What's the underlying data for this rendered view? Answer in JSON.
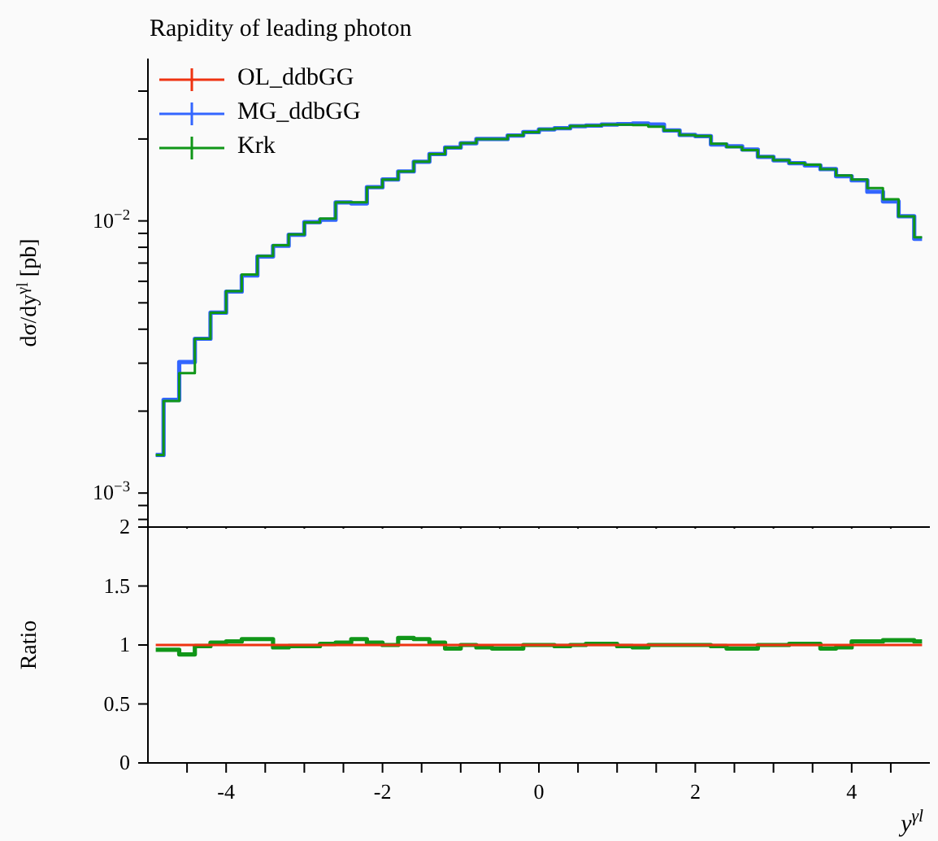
{
  "chart_data": [
    {
      "type": "step",
      "title": "Rapidity of leading photon",
      "ylabel": "dσ/dy$^{γl}$ [pb]",
      "log": "y",
      "legend": "top left",
      "tick_labels": "y",
      "x": [
        -4.9,
        -4.7,
        -4.5,
        -4.3,
        -4.1,
        -3.9,
        -3.7,
        -3.5,
        -3.3,
        -3.1,
        -2.9,
        -2.7,
        -2.5,
        -2.3,
        -2.1,
        -1.9,
        -1.7,
        -1.5,
        -1.3,
        -1.1,
        -0.9,
        -0.7,
        -0.5,
        -0.3,
        -0.1,
        0.1,
        0.3,
        0.5,
        0.7,
        0.9,
        1.1,
        1.3,
        1.5,
        1.7,
        1.9,
        2.1,
        2.3,
        2.5,
        2.7,
        2.9,
        3.1,
        3.3,
        3.5,
        3.7,
        3.9,
        4.1,
        4.3,
        4.5,
        4.7,
        4.9
      ],
      "xlim": [
        -5,
        5
      ],
      "xticks": [
        {
          "value": -4.5,
          "label": null
        },
        {
          "value": -4,
          "label": null
        },
        {
          "value": -3.5,
          "label": null
        },
        {
          "value": -3,
          "label": null
        },
        {
          "value": -2.5,
          "label": null
        },
        {
          "value": -2,
          "label": null
        },
        {
          "value": -1.5,
          "label": null
        },
        {
          "value": -1,
          "label": null
        },
        {
          "value": -0.5,
          "label": null
        },
        {
          "value": 0,
          "label": null
        },
        {
          "value": 0.5,
          "label": null
        },
        {
          "value": 1,
          "label": null
        },
        {
          "value": 1.5,
          "label": null
        },
        {
          "value": 2,
          "label": null
        },
        {
          "value": 2.5,
          "label": null
        },
        {
          "value": 3,
          "label": null
        },
        {
          "value": 3.5,
          "label": null
        },
        {
          "value": 4,
          "label": null
        },
        {
          "value": 4.5,
          "label": null
        }
      ],
      "ylim": [
        0.00075,
        0.0395
      ],
      "yticks": [
        {
          "value": 0.0008,
          "label": null
        },
        {
          "value": 0.0009,
          "label": null
        },
        {
          "value": 0.001,
          "label": "10$^{−3}$"
        },
        {
          "value": 0.002,
          "label": null
        },
        {
          "value": 0.003,
          "label": null
        },
        {
          "value": 0.004,
          "label": null
        },
        {
          "value": 0.005,
          "label": null
        },
        {
          "value": 0.006,
          "label": null
        },
        {
          "value": 0.007,
          "label": null
        },
        {
          "value": 0.008,
          "label": null
        },
        {
          "value": 0.009,
          "label": null
        },
        {
          "value": 0.01,
          "label": "10$^{−2}$"
        },
        {
          "value": 0.02,
          "label": null
        },
        {
          "value": 0.03,
          "label": null
        }
      ],
      "series": [
        {
          "name": "OL_ddbGG",
          "color": "#ee3311",
          "values": [
            null,
            null,
            null,
            null,
            null,
            null,
            null,
            null,
            null,
            null,
            null,
            null,
            null,
            null,
            null,
            null,
            null,
            null,
            null,
            null,
            null,
            null,
            null,
            null,
            null,
            null,
            null,
            null,
            null,
            null,
            null,
            null,
            null,
            null,
            null,
            null,
            null,
            null,
            null,
            null,
            null,
            null,
            null,
            null,
            null,
            null,
            null,
            null,
            null,
            null
          ]
        },
        {
          "name": "MG_ddbGG",
          "color": "#3366ff",
          "values": [
            0.00138,
            0.0022,
            0.00303,
            0.00369,
            0.0046,
            0.0055,
            0.0063,
            0.0074,
            0.0081,
            0.0089,
            0.0099,
            0.0101,
            0.0117,
            0.0116,
            0.0133,
            0.0142,
            0.0152,
            0.0165,
            0.0176,
            0.0186,
            0.0193,
            0.02,
            0.02,
            0.0206,
            0.0212,
            0.0217,
            0.0219,
            0.0223,
            0.0224,
            0.0226,
            0.0227,
            0.0228,
            0.0226,
            0.0215,
            0.0207,
            0.0205,
            0.0191,
            0.0188,
            0.0183,
            0.0172,
            0.0167,
            0.0163,
            0.016,
            0.0155,
            0.0146,
            0.0141,
            0.0128,
            0.0118,
            0.0104,
            0.0086
          ]
        },
        {
          "name": "Krk",
          "color": "#109618",
          "values": [
            0.00138,
            0.00218,
            0.00276,
            0.00369,
            0.0046,
            0.00552,
            0.00635,
            0.00743,
            0.00814,
            0.00892,
            0.00987,
            0.0102,
            0.0117,
            0.0117,
            0.0133,
            0.0142,
            0.0152,
            0.0165,
            0.0176,
            0.0186,
            0.0193,
            0.02,
            0.02,
            0.0206,
            0.0212,
            0.0217,
            0.0219,
            0.0223,
            0.0224,
            0.0226,
            0.0226,
            0.0225,
            0.0222,
            0.0215,
            0.0207,
            0.0205,
            0.0192,
            0.0187,
            0.0182,
            0.0172,
            0.0167,
            0.0163,
            0.0161,
            0.0155,
            0.0147,
            0.0142,
            0.0132,
            0.012,
            0.0104,
            0.0087
          ]
        }
      ]
    },
    {
      "type": "step",
      "xlabel": "y$^{γl}$",
      "ylabel": "Ratio",
      "x": [
        -4.9,
        -4.7,
        -4.5,
        -4.3,
        -4.1,
        -3.9,
        -3.7,
        -3.5,
        -3.3,
        -3.1,
        -2.9,
        -2.7,
        -2.5,
        -2.3,
        -2.1,
        -1.9,
        -1.7,
        -1.5,
        -1.3,
        -1.1,
        -0.9,
        -0.7,
        -0.5,
        -0.3,
        -0.1,
        0.1,
        0.3,
        0.5,
        0.7,
        0.9,
        1.1,
        1.3,
        1.5,
        1.7,
        1.9,
        2.1,
        2.3,
        2.5,
        2.7,
        2.9,
        3.1,
        3.3,
        3.5,
        3.7,
        3.9,
        4.1,
        4.3,
        4.5,
        4.7,
        4.9
      ],
      "xlim": [
        -5,
        5
      ],
      "xticks": [
        {
          "value": -4.5,
          "label": null
        },
        -4,
        {
          "value": -3.5,
          "label": null
        },
        {
          "value": -3,
          "label": null
        },
        {
          "value": -2.5,
          "label": null
        },
        -2,
        {
          "value": -1.5,
          "label": null
        },
        {
          "value": -1,
          "label": null
        },
        {
          "value": -0.5,
          "label": null
        },
        0,
        {
          "value": 0.5,
          "label": null
        },
        {
          "value": 1,
          "label": null
        },
        {
          "value": 1.5,
          "label": null
        },
        2,
        {
          "value": 2.5,
          "label": null
        },
        {
          "value": 3,
          "label": null
        },
        {
          "value": 3.5,
          "label": null
        },
        4,
        {
          "value": 4.5,
          "label": null
        }
      ],
      "ylim": [
        0,
        2
      ],
      "yticks": [
        0,
        0.5,
        1,
        1.5,
        2
      ],
      "series": [
        {
          "color": "#109618",
          "values": [
            0.96,
            0.96,
            0.92,
            0.99,
            1.02,
            1.03,
            1.05,
            1.05,
            0.98,
            0.99,
            0.99,
            1.01,
            1.02,
            1.05,
            1.02,
            1,
            1.06,
            1.05,
            1.02,
            0.97,
            1,
            0.98,
            0.97,
            0.97,
            1,
            1,
            0.99,
            1,
            1.01,
            1.01,
            0.99,
            0.98,
            1,
            1,
            1,
            1,
            0.99,
            0.97,
            0.97,
            1,
            1,
            1.01,
            1.01,
            0.97,
            0.98,
            1.03,
            1.03,
            1.04,
            1.04,
            1.03
          ]
        },
        {
          "color": "#ee3311",
          "values": [
            1,
            1,
            1,
            1,
            1,
            1,
            1,
            1,
            1,
            1,
            1,
            1,
            1,
            1,
            1,
            1,
            1,
            1,
            1,
            1,
            1,
            1,
            1,
            1,
            1,
            1,
            1,
            1,
            1,
            1,
            1,
            1,
            1,
            1,
            1,
            1,
            1,
            1,
            1,
            1,
            1,
            1,
            1,
            1,
            1,
            1,
            1,
            1,
            1,
            1
          ]
        }
      ]
    }
  ]
}
